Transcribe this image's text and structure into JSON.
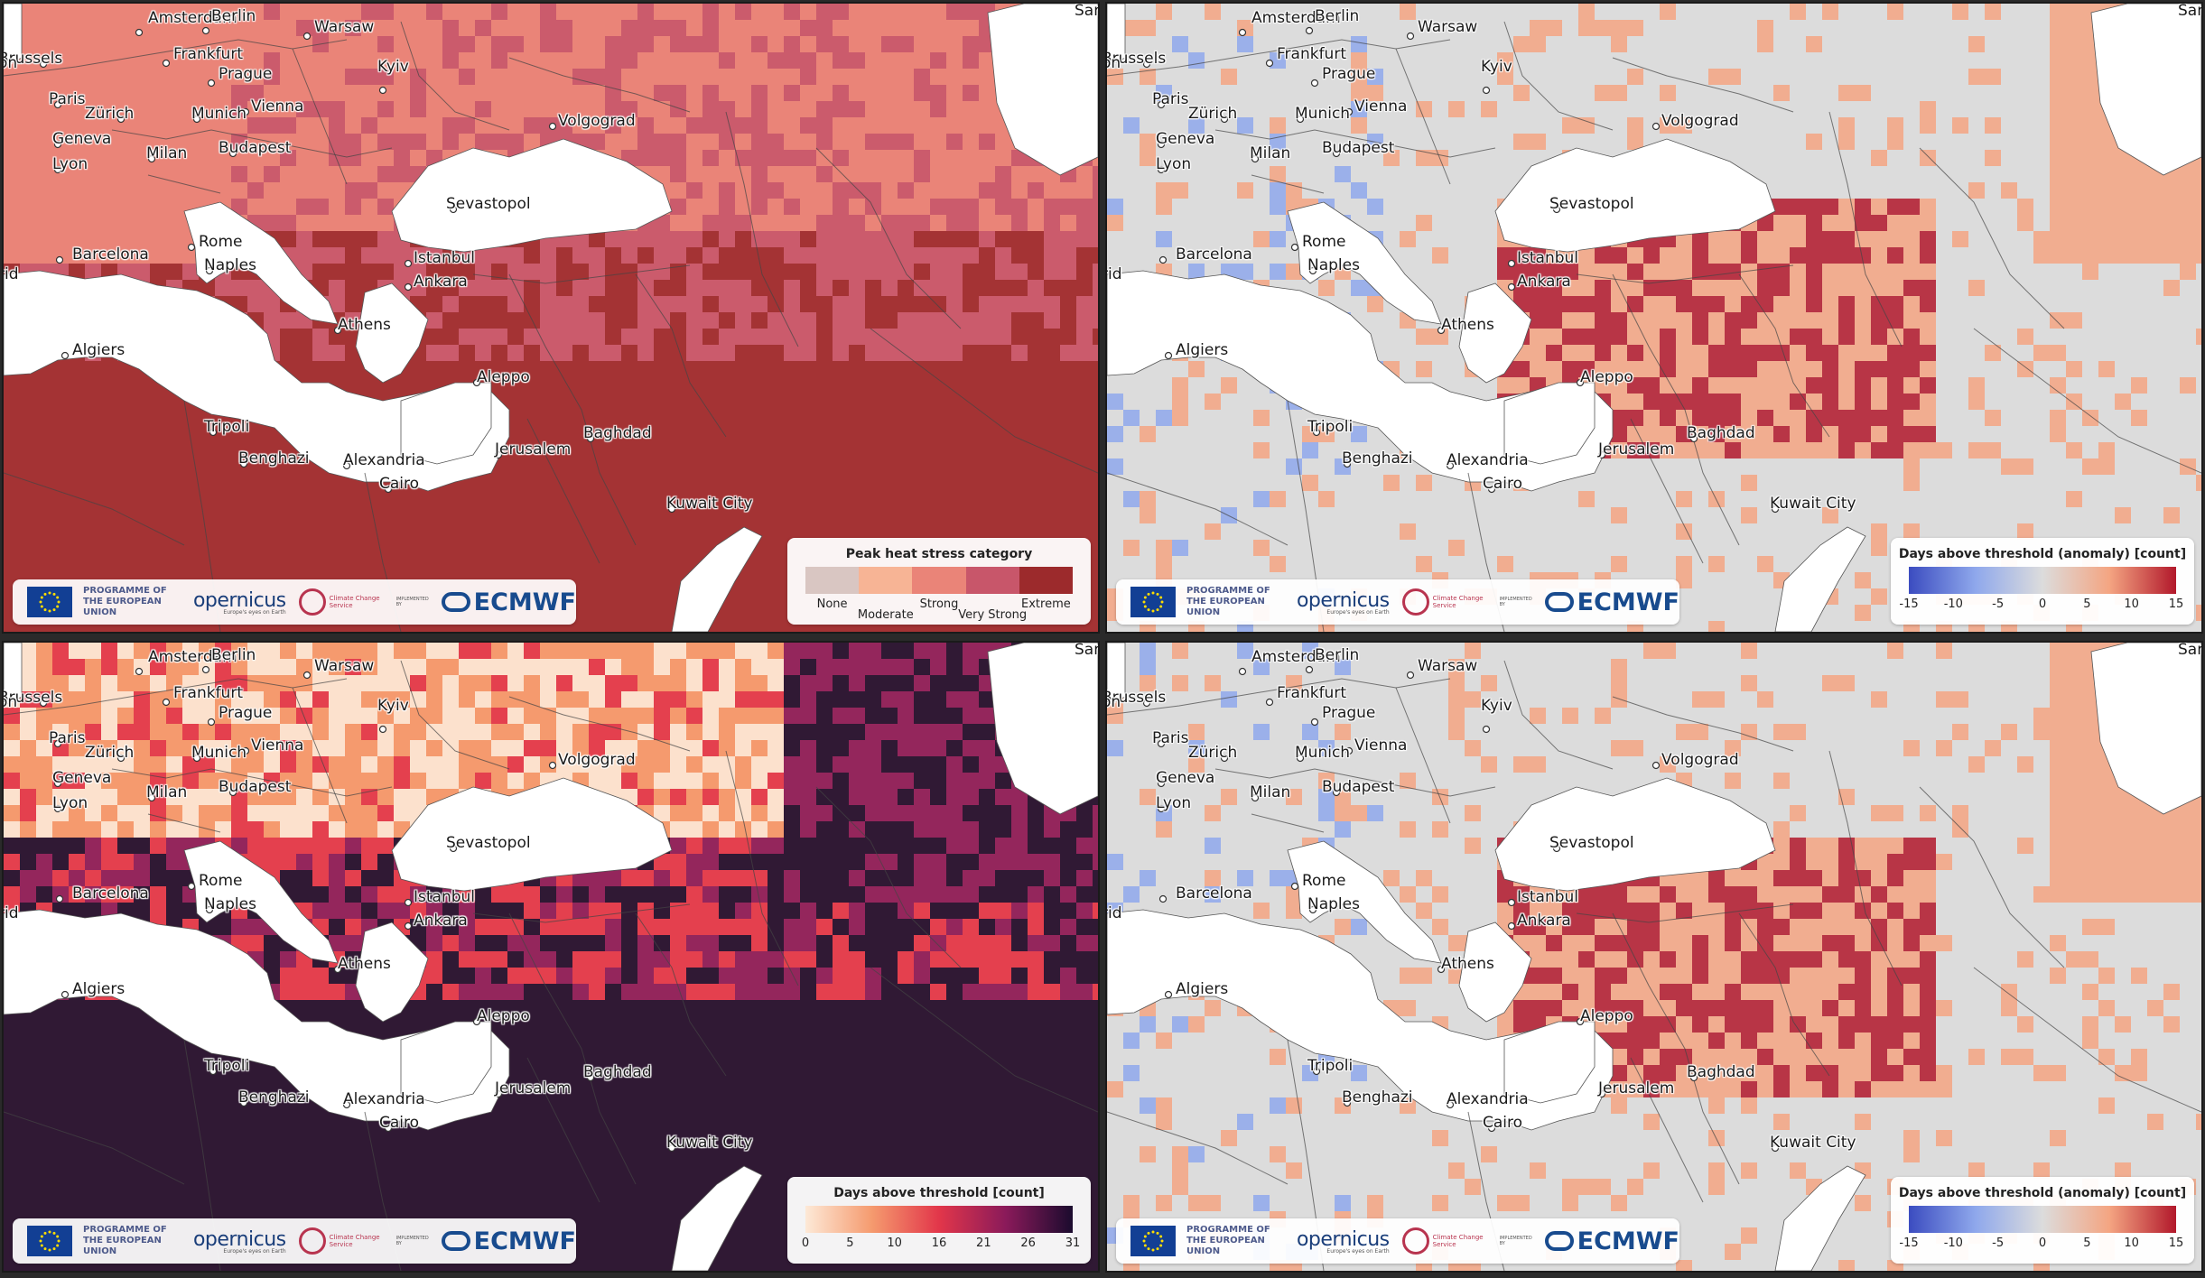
{
  "panels": [
    {
      "id": "tl",
      "legend": {
        "title": "Peak heat stress category",
        "type": "categorical",
        "categories": [
          "None",
          "Moderate",
          "Strong",
          "Very Strong",
          "Extreme"
        ],
        "colors": [
          "#d9c6c2",
          "#f7b495",
          "#ea8478",
          "#c8566a",
          "#9c2a2c"
        ]
      }
    },
    {
      "id": "tr",
      "legend": {
        "title": "Days above threshold (anomaly) [count]",
        "type": "diverging",
        "ticks": [
          "-15",
          "-10",
          "-5",
          "0",
          "5",
          "10",
          "15"
        ],
        "colors": [
          "#3b4cc0",
          "#8fa8ec",
          "#dcdcdc",
          "#f4a582",
          "#b2182b"
        ]
      }
    },
    {
      "id": "bl",
      "legend": {
        "title": "Days above threshold [count]",
        "type": "sequential",
        "ticks": [
          "0",
          "5",
          "10",
          "16",
          "21",
          "26",
          "31"
        ],
        "colors": [
          "#fde9d7",
          "#f59a6e",
          "#e2364a",
          "#8a1a5a",
          "#1b0b2e"
        ]
      }
    },
    {
      "id": "br",
      "legend": {
        "title": "Days above threshold (anomaly) [count]",
        "type": "diverging",
        "ticks": [
          "-15",
          "-10",
          "-5",
          "0",
          "5",
          "10",
          "15"
        ],
        "colors": [
          "#3b4cc0",
          "#8fa8ec",
          "#dcdcdc",
          "#f4a582",
          "#b2182b"
        ]
      }
    }
  ],
  "cities": [
    "Amsterdam",
    "Berlin",
    "Warsaw",
    "Brussels",
    "Frankfurt",
    "Prague",
    "Paris",
    "Zürich",
    "Munich",
    "Vienna",
    "Kyiv",
    "Geneva",
    "Budapest",
    "Volgograd",
    "Lyon",
    "Milan",
    "Sevastopol",
    "Rome",
    "Naples",
    "Barcelona",
    "Istanbul",
    "Ankara",
    "Athens",
    "Algiers",
    "Aleppo",
    "Tripoli",
    "Baghdad",
    "Benghazi",
    "Alexandria",
    "Jerusalem",
    "Cairo",
    "Kuwait City"
  ],
  "edge_labels": {
    "top_right": "Sar",
    "left_top": "on",
    "left_mid": "rid"
  },
  "branding": {
    "programme": "PROGRAMME OF THE EUROPEAN UNION",
    "copernicus": "opernicus",
    "copernicus_tag": "Europe's eyes on Earth",
    "c3s": "Climate Change Service",
    "implemented_by": "IMPLEMENTED BY",
    "ecmwf": "ECMWF"
  }
}
